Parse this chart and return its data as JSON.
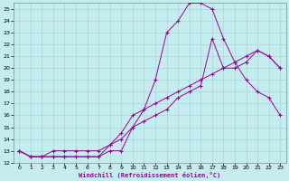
{
  "xlabel": "Windchill (Refroidissement éolien,°C)",
  "bg_color": "#c5ecee",
  "grid_color": "#a8d8db",
  "line_color": "#990099",
  "xlim": [
    -0.5,
    23.5
  ],
  "ylim": [
    12,
    25.5
  ],
  "xticks": [
    0,
    1,
    2,
    3,
    4,
    5,
    6,
    7,
    8,
    9,
    10,
    11,
    12,
    13,
    14,
    15,
    16,
    17,
    18,
    19,
    20,
    21,
    22,
    23
  ],
  "yticks": [
    12,
    13,
    14,
    15,
    16,
    17,
    18,
    19,
    20,
    21,
    22,
    23,
    24,
    25
  ],
  "line1_x": [
    0,
    1,
    2,
    3,
    4,
    5,
    6,
    7,
    8,
    9,
    10,
    11,
    12,
    13,
    14,
    15,
    16,
    17,
    18,
    19,
    20,
    21,
    22,
    23
  ],
  "line1_y": [
    13,
    12.5,
    12.5,
    12.5,
    12.5,
    12.5,
    12.5,
    12.5,
    13.5,
    14.5,
    16,
    16.5,
    17,
    17.5,
    18,
    18.5,
    19,
    19.5,
    20,
    20.5,
    21,
    21.5,
    21,
    20
  ],
  "line2_x": [
    0,
    1,
    2,
    3,
    4,
    5,
    6,
    7,
    8,
    9,
    10,
    11,
    12,
    13,
    14,
    15,
    16,
    17,
    18,
    19,
    20,
    21,
    22,
    23
  ],
  "line2_y": [
    13,
    12.5,
    12.5,
    12.5,
    12.5,
    12.5,
    12.5,
    12.5,
    13,
    13,
    15,
    16.5,
    19,
    23,
    24,
    25.5,
    25.5,
    25,
    22.5,
    20.5,
    19,
    18,
    17.5,
    16
  ],
  "line3_x": [
    0,
    1,
    2,
    3,
    4,
    5,
    6,
    7,
    8,
    9,
    10,
    11,
    12,
    13,
    14,
    15,
    16,
    17,
    18,
    19,
    20,
    21,
    22,
    23
  ],
  "line3_y": [
    13,
    12.5,
    12.5,
    13,
    13,
    13,
    13,
    13,
    13.5,
    14,
    15,
    15.5,
    16,
    16.5,
    17.5,
    18,
    18.5,
    22.5,
    20,
    20,
    20.5,
    21.5,
    21,
    20
  ]
}
